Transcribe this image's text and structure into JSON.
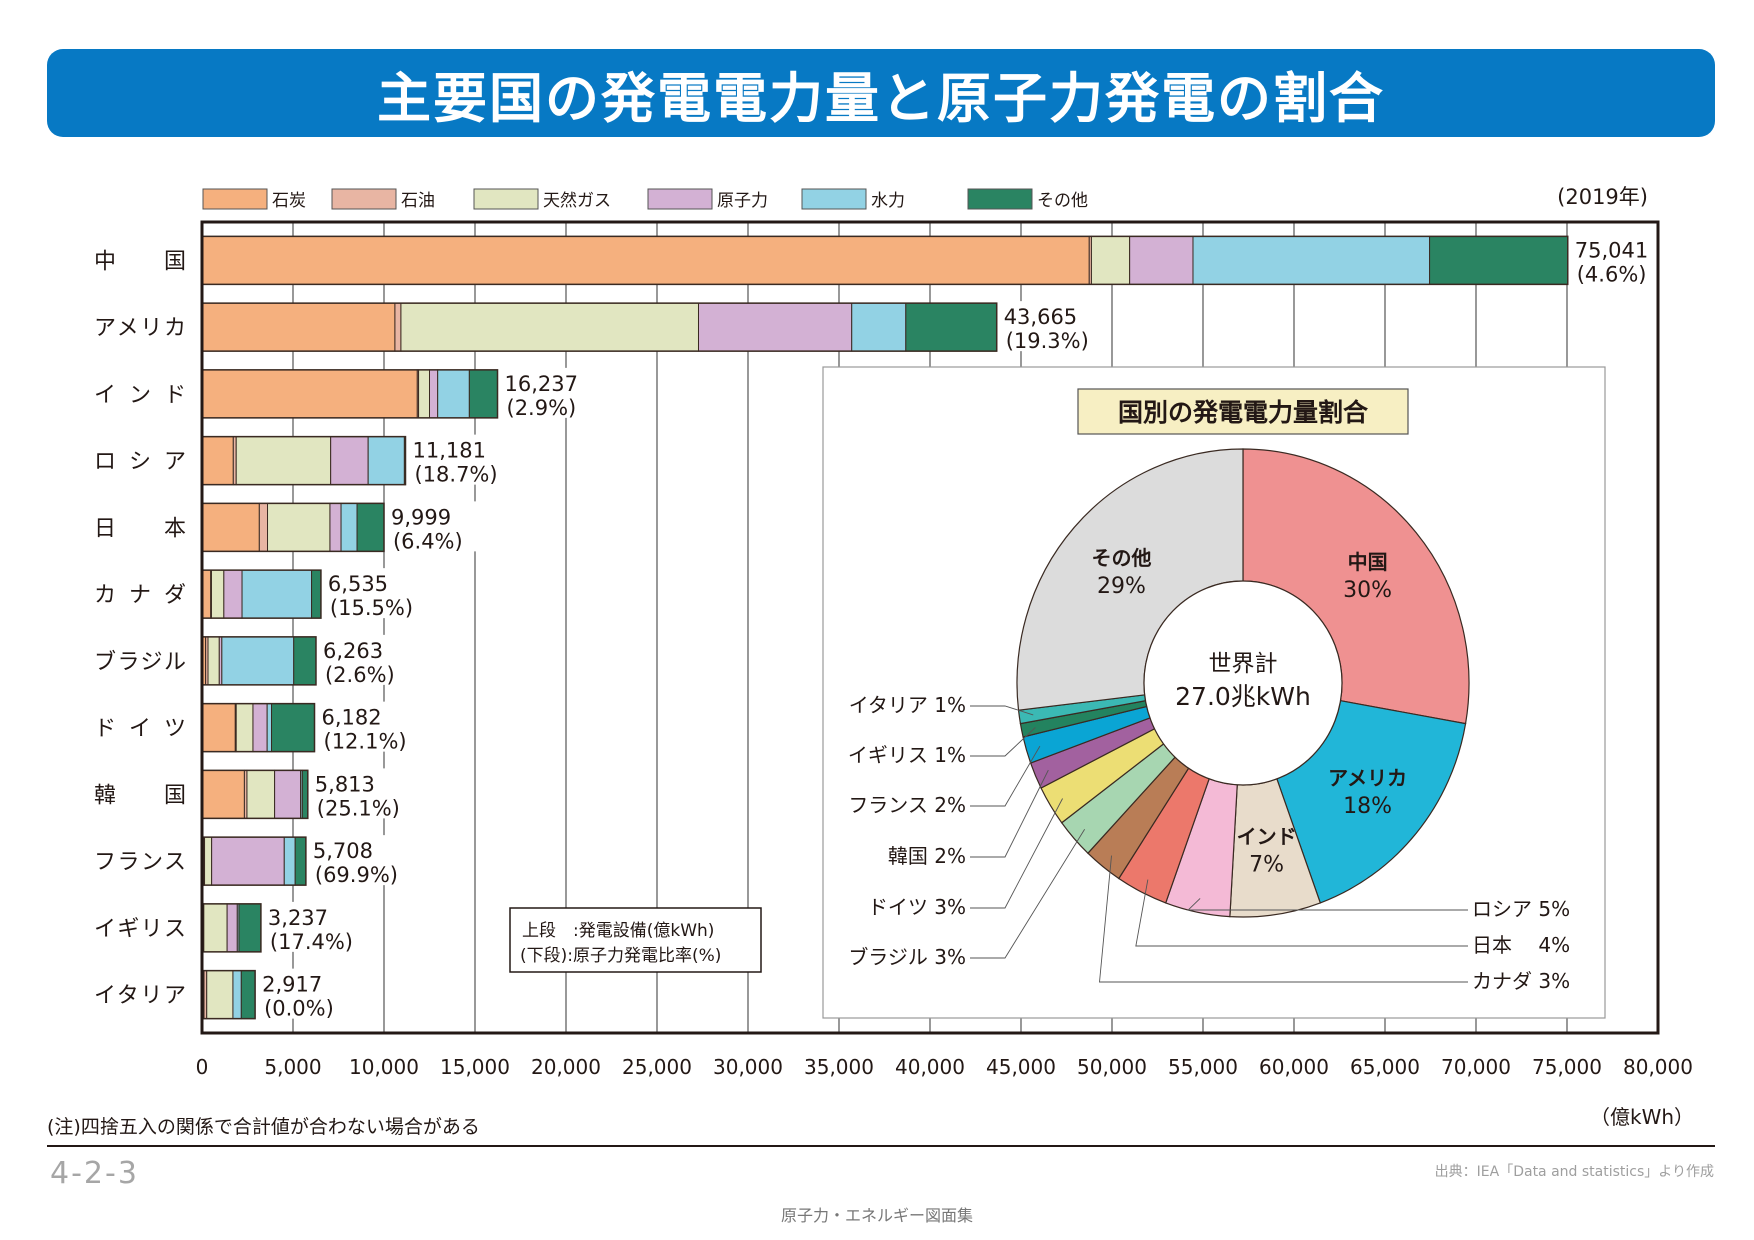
{
  "title": "主要国の発電電力量と原子力発電の割合",
  "year_label": "(2019年)",
  "unit_label": "（億kWh）",
  "note": "(注)四捨五入の関係で合計値が合わない場合がある",
  "page_number": "4-2-3",
  "source": "出典：IEA「Data and statistics」より作成",
  "book_title": "原子力・エネルギー図面集",
  "legend_box": {
    "line1": "上段　:発電設備(億kWh)",
    "line2": "(下段):原子力発電比率(%)"
  },
  "chart_data": [
    {
      "type": "bar",
      "orientation": "horizontal-stacked",
      "title": "主要国の発電電力量と原子力発電の割合",
      "xlabel": "（億kWh）",
      "xlim": [
        0,
        80000
      ],
      "xticks": [
        0,
        5000,
        10000,
        15000,
        20000,
        25000,
        30000,
        35000,
        40000,
        45000,
        50000,
        55000,
        60000,
        65000,
        70000,
        75000,
        80000
      ],
      "xtick_labels": [
        "0",
        "5,000",
        "10,000",
        "15,000",
        "20,000",
        "25,000",
        "30,000",
        "35,000",
        "40,000",
        "45,000",
        "50,000",
        "55,000",
        "60,000",
        "65,000",
        "70,000",
        "75,000",
        "80,000"
      ],
      "grid": true,
      "legend_position": "top",
      "categories": [
        "中　　国",
        "アメリカ",
        "イ ン ド",
        "ロ シ ア",
        "日　　本",
        "カ ナ ダ",
        "ブラジル",
        "ド イ ツ",
        "韓　　国",
        "フランス",
        "イギリス",
        "イタリア"
      ],
      "series": [
        {
          "name": "石炭",
          "color": "#f5b07e",
          "values": [
            48750,
            10600,
            11830,
            1720,
            3150,
            480,
            200,
            1830,
            2330,
            110,
            70,
            110
          ]
        },
        {
          "name": "石油",
          "color": "#e8b5a3",
          "values": [
            120,
            330,
            70,
            160,
            450,
            40,
            130,
            50,
            140,
            30,
            30,
            150
          ]
        },
        {
          "name": "天然ガス",
          "color": "#e1e6c1",
          "values": [
            2100,
            16350,
            600,
            5190,
            3430,
            680,
            620,
            920,
            1520,
            390,
            1280,
            1440
          ]
        },
        {
          "name": "原子力",
          "color": "#d3b1d4",
          "values": [
            3480,
            8420,
            450,
            2060,
            610,
            1000,
            140,
            780,
            1430,
            3990,
            560,
            0
          ]
        },
        {
          "name": "水力",
          "color": "#92d2e4",
          "values": [
            13000,
            2970,
            1740,
            1990,
            880,
            3820,
            3950,
            240,
            90,
            600,
            90,
            460
          ]
        },
        {
          "name": "その他",
          "color": "#2a8462",
          "values": [
            7590,
            5000,
            1547,
            61,
            1479,
            515,
            1223,
            2362,
            303,
            588,
            1207,
            757
          ]
        }
      ],
      "totals": [
        75041,
        43665,
        16237,
        11181,
        9999,
        6535,
        6263,
        6182,
        5813,
        5708,
        3237,
        2917
      ],
      "total_labels": [
        "75,041",
        "43,665",
        "16,237",
        "11,181",
        "9,999",
        "6,535",
        "6,263",
        "6,182",
        "5,813",
        "5,708",
        "3,237",
        "2,917"
      ],
      "nuclear_share_labels": [
        "(4.6%)",
        "(19.3%)",
        "(2.9%)",
        "(18.7%)",
        "(6.4%)",
        "(15.5%)",
        "(2.6%)",
        "(12.1%)",
        "(25.1%)",
        "(69.9%)",
        "(17.4%)",
        "(0.0%)"
      ],
      "year": "(2019年)"
    },
    {
      "type": "pie",
      "style": "donut",
      "title": "国別の発電電力量割合",
      "center_label": [
        "世界計",
        "27.0兆kWh"
      ],
      "slices": [
        {
          "label": "中国",
          "value": 30,
          "text": "30%",
          "color": "#ef9191",
          "label_pos": "inside"
        },
        {
          "label": "アメリカ",
          "value": 18,
          "text": "18%",
          "color": "#21b6d8",
          "label_pos": "inside"
        },
        {
          "label": "インド",
          "value": 7,
          "text": "7%",
          "color": "#e8dccb",
          "label_pos": "inside"
        },
        {
          "label": "ロシア",
          "value": 5,
          "text": "ロシア 5%",
          "color": "#f4bad6",
          "label_pos": "right"
        },
        {
          "label": "日本",
          "value": 4,
          "text": "日本　 4%",
          "color": "#ec786b",
          "label_pos": "right"
        },
        {
          "label": "カナダ",
          "value": 3,
          "text": "カナダ 3%",
          "color": "#b97d56",
          "label_pos": "right"
        },
        {
          "label": "ブラジル",
          "value": 3,
          "text": "ブラジル 3%",
          "color": "#a7d6b1",
          "label_pos": "left"
        },
        {
          "label": "ドイツ",
          "value": 3,
          "text": "ドイツ 3%",
          "color": "#ecde74",
          "label_pos": "left"
        },
        {
          "label": "韓国",
          "value": 2,
          "text": "韓国 2%",
          "color": "#a2619f",
          "label_pos": "left"
        },
        {
          "label": "フランス",
          "value": 2,
          "text": "フランス 2%",
          "color": "#0aa5d4",
          "label_pos": "left"
        },
        {
          "label": "イギリス",
          "value": 1,
          "text": "イギリス 1%",
          "color": "#23835f",
          "label_pos": "left"
        },
        {
          "label": "イタリア",
          "value": 1,
          "text": "イタリア 1%",
          "color": "#3bb9b4",
          "label_pos": "left"
        },
        {
          "label": "その他",
          "value": 29,
          "text": "29%",
          "color": "#dcdcdc",
          "label_pos": "inside"
        }
      ]
    }
  ]
}
